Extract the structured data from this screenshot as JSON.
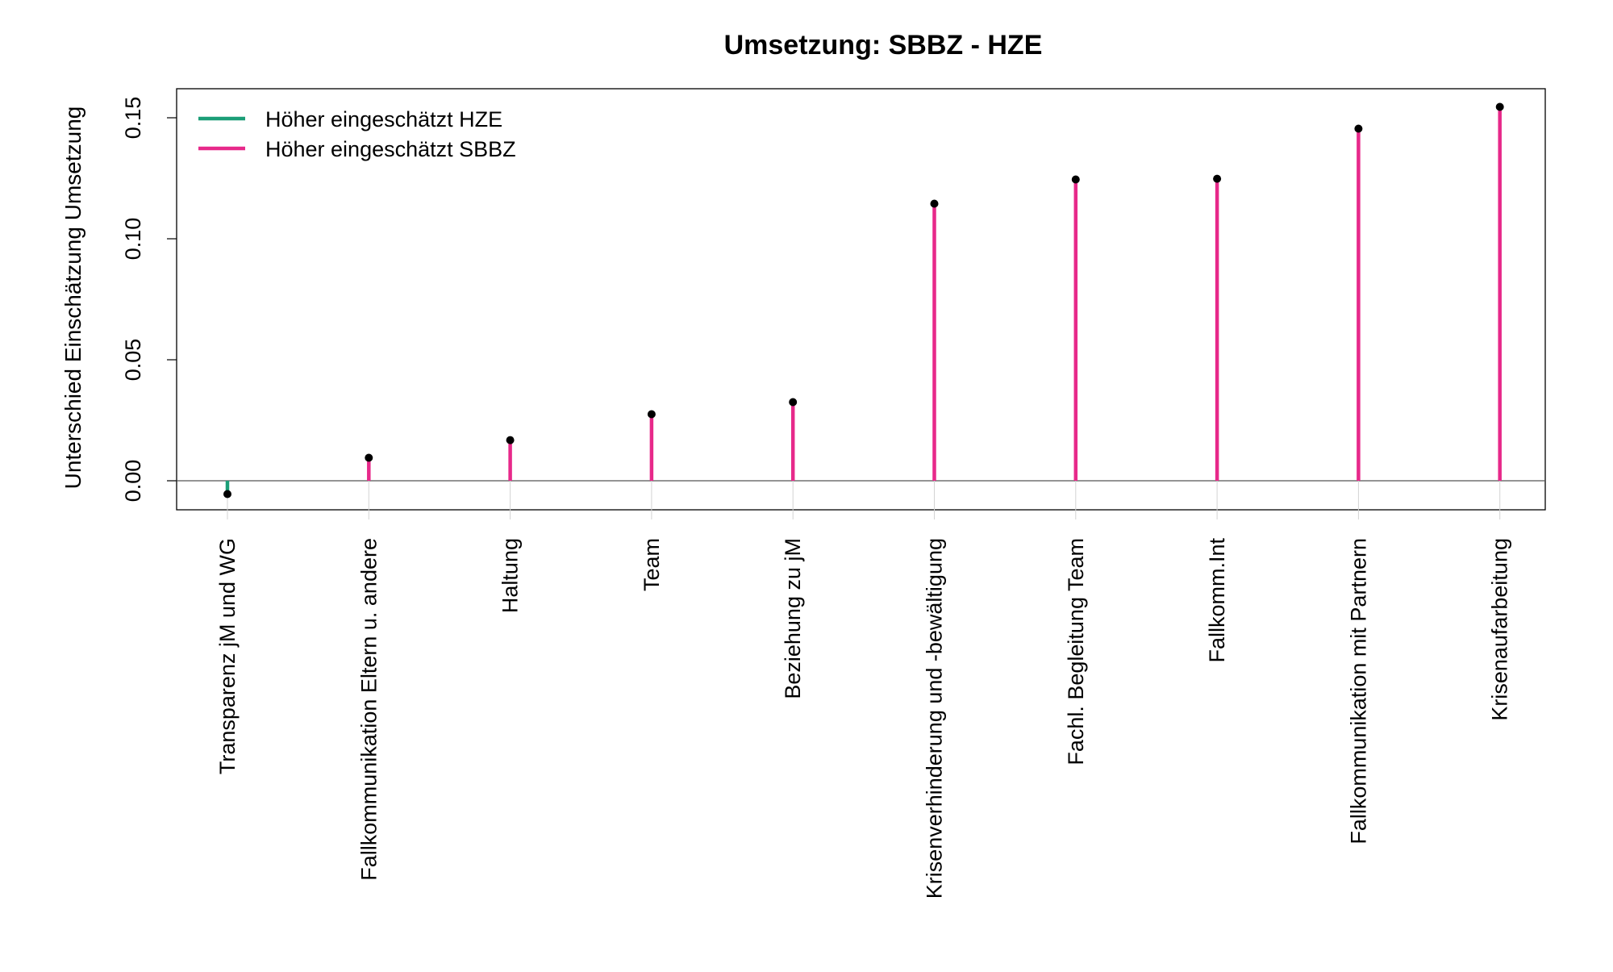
{
  "chart_data": {
    "type": "lollipop",
    "title": "Umsetzung: SBBZ - HZE",
    "xlabel": "",
    "ylabel": "Unterschied Einschätzung Umsetzung",
    "ylim": [
      -0.012,
      0.162
    ],
    "yticks": [
      0.0,
      0.05,
      0.1,
      0.15
    ],
    "ytick_labels": [
      "0.00",
      "0.05",
      "0.10",
      "0.15"
    ],
    "grid": false,
    "legend_position": "top-left",
    "categories": [
      "Transparenz jM und WG",
      "Fallkommunikation Eltern u. andere",
      "Haltung",
      "Team",
      "Beziehung zu jM",
      "Krisenverhinderung und -bewältigung",
      "Fachl. Begleitung Team",
      "Fallkomm.Int",
      "Fallkommunikation mit Partnern",
      "Krisenaufarbeitung"
    ],
    "values": [
      -0.0055,
      0.0095,
      0.0168,
      0.0275,
      0.0325,
      0.1145,
      0.1245,
      0.1248,
      0.1455,
      0.1545
    ],
    "series": [
      {
        "name": "Höher eingeschätzt HZE",
        "color": "#1b9e77"
      },
      {
        "name": "Höher eingeschätzt SBBZ",
        "color": "#e7298a"
      }
    ],
    "point_color": "#000000"
  }
}
